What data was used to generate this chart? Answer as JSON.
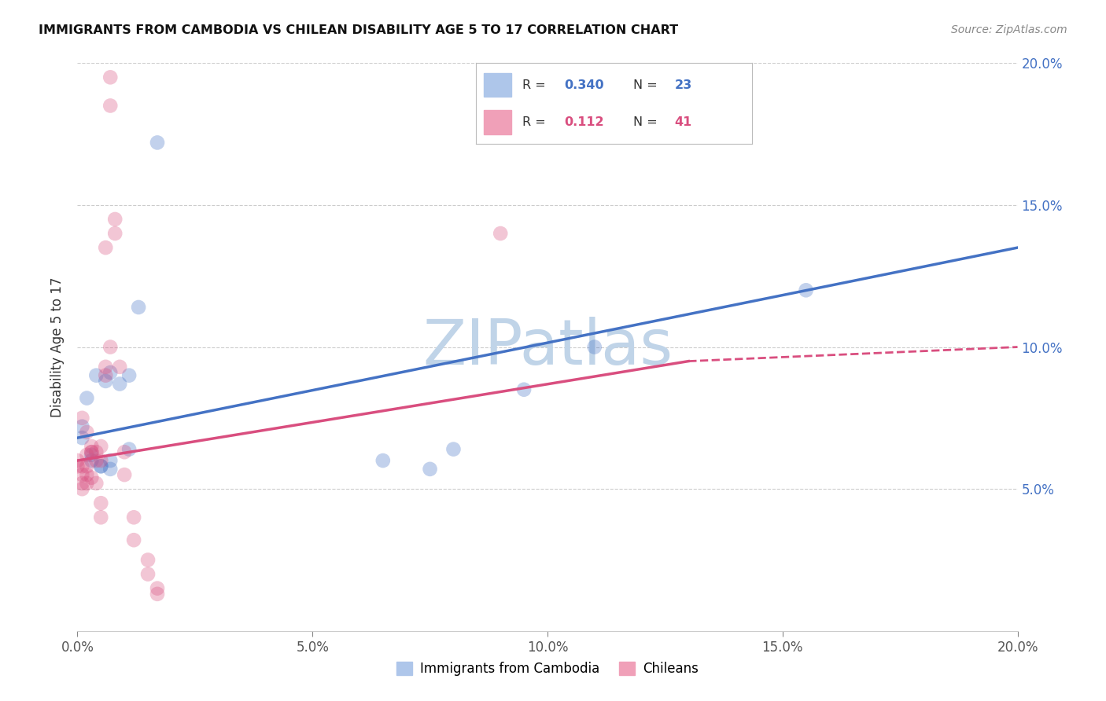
{
  "title": "IMMIGRANTS FROM CAMBODIA VS CHILEAN DISABILITY AGE 5 TO 17 CORRELATION CHART",
  "source": "Source: ZipAtlas.com",
  "ylabel": "Disability Age 5 to 17",
  "xlim": [
    0,
    0.2
  ],
  "ylim": [
    0,
    0.2
  ],
  "xtick_vals": [
    0.0,
    0.05,
    0.1,
    0.15,
    0.2
  ],
  "xtick_labels": [
    "0.0%",
    "5.0%",
    "10.0%",
    "15.0%",
    "20.0%"
  ],
  "ytick_vals": [
    0.05,
    0.1,
    0.15,
    0.2
  ],
  "ytick_labels": [
    "5.0%",
    "10.0%",
    "15.0%",
    "20.0%"
  ],
  "blue_R": "0.340",
  "blue_N": "23",
  "pink_R": "0.112",
  "pink_N": "41",
  "legend_label_blue": "Immigrants from Cambodia",
  "legend_label_pink": "Chileans",
  "blue_line": [
    [
      0.0,
      0.068
    ],
    [
      0.2,
      0.135
    ]
  ],
  "pink_line_solid": [
    [
      0.0,
      0.06
    ],
    [
      0.13,
      0.095
    ]
  ],
  "pink_line_dash": [
    [
      0.13,
      0.095
    ],
    [
      0.2,
      0.1
    ]
  ],
  "blue_points": [
    [
      0.001,
      0.072
    ],
    [
      0.001,
      0.068
    ],
    [
      0.002,
      0.082
    ],
    [
      0.003,
      0.06
    ],
    [
      0.003,
      0.062
    ],
    [
      0.004,
      0.09
    ],
    [
      0.005,
      0.058
    ],
    [
      0.005,
      0.058
    ],
    [
      0.006,
      0.088
    ],
    [
      0.007,
      0.091
    ],
    [
      0.007,
      0.06
    ],
    [
      0.007,
      0.057
    ],
    [
      0.009,
      0.087
    ],
    [
      0.011,
      0.09
    ],
    [
      0.011,
      0.064
    ],
    [
      0.013,
      0.114
    ],
    [
      0.017,
      0.172
    ],
    [
      0.065,
      0.06
    ],
    [
      0.075,
      0.057
    ],
    [
      0.08,
      0.064
    ],
    [
      0.095,
      0.085
    ],
    [
      0.11,
      0.1
    ],
    [
      0.155,
      0.12
    ]
  ],
  "pink_points": [
    [
      0.0,
      0.06
    ],
    [
      0.0,
      0.058
    ],
    [
      0.001,
      0.05
    ],
    [
      0.001,
      0.052
    ],
    [
      0.001,
      0.058
    ],
    [
      0.001,
      0.055
    ],
    [
      0.001,
      0.075
    ],
    [
      0.002,
      0.062
    ],
    [
      0.002,
      0.07
    ],
    [
      0.002,
      0.052
    ],
    [
      0.002,
      0.055
    ],
    [
      0.002,
      0.058
    ],
    [
      0.003,
      0.063
    ],
    [
      0.003,
      0.063
    ],
    [
      0.003,
      0.065
    ],
    [
      0.003,
      0.054
    ],
    [
      0.004,
      0.052
    ],
    [
      0.004,
      0.06
    ],
    [
      0.004,
      0.063
    ],
    [
      0.005,
      0.06
    ],
    [
      0.005,
      0.065
    ],
    [
      0.005,
      0.045
    ],
    [
      0.005,
      0.04
    ],
    [
      0.006,
      0.093
    ],
    [
      0.006,
      0.09
    ],
    [
      0.006,
      0.135
    ],
    [
      0.007,
      0.1
    ],
    [
      0.007,
      0.185
    ],
    [
      0.007,
      0.195
    ],
    [
      0.008,
      0.145
    ],
    [
      0.008,
      0.14
    ],
    [
      0.009,
      0.093
    ],
    [
      0.01,
      0.063
    ],
    [
      0.01,
      0.055
    ],
    [
      0.012,
      0.04
    ],
    [
      0.012,
      0.032
    ],
    [
      0.015,
      0.025
    ],
    [
      0.015,
      0.02
    ],
    [
      0.017,
      0.015
    ],
    [
      0.017,
      0.013
    ],
    [
      0.09,
      0.14
    ]
  ],
  "blue_line_color": "#4472C4",
  "pink_line_color": "#D94E7F",
  "background_color": "#ffffff",
  "grid_color": "#cccccc",
  "watermark": "ZIPatlas",
  "watermark_color": "#c0d4e8"
}
